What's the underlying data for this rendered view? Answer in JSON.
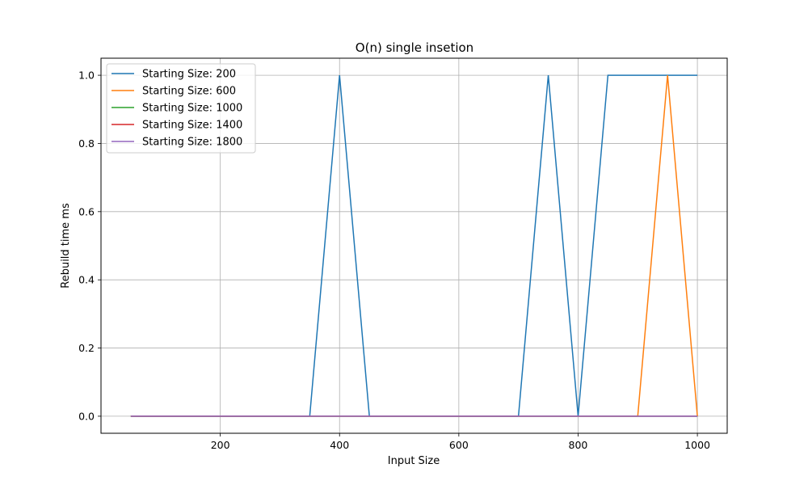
{
  "chart_data": {
    "type": "line",
    "title": "O(n) single insetion",
    "xlabel": "Input Size",
    "ylabel": "Rebuild time ms",
    "xlim": [
      0,
      1050
    ],
    "ylim": [
      -0.05,
      1.05
    ],
    "xticks": [
      200,
      400,
      600,
      800,
      1000
    ],
    "yticks": [
      0.0,
      0.2,
      0.4,
      0.6,
      0.8,
      1.0
    ],
    "xtick_labels": [
      "200",
      "400",
      "600",
      "800",
      "1000"
    ],
    "ytick_labels": [
      "0.0",
      "0.2",
      "0.4",
      "0.6",
      "0.8",
      "1.0"
    ],
    "grid": true,
    "legend_position": "top-left",
    "x": [
      50,
      100,
      150,
      200,
      250,
      300,
      350,
      400,
      450,
      500,
      550,
      600,
      650,
      700,
      750,
      800,
      850,
      900,
      950,
      1000
    ],
    "series": [
      {
        "name": "Starting Size: 200",
        "color": "#1f77b4",
        "values": [
          0,
          0,
          0,
          0,
          0,
          0,
          0,
          1,
          0,
          0,
          0,
          0,
          0,
          0,
          1,
          0,
          1,
          1,
          1,
          1
        ]
      },
      {
        "name": "Starting Size: 600",
        "color": "#ff7f0e",
        "values": [
          0,
          0,
          0,
          0,
          0,
          0,
          0,
          0,
          0,
          0,
          0,
          0,
          0,
          0,
          0,
          0,
          0,
          0,
          1,
          0
        ]
      },
      {
        "name": "Starting Size: 1000",
        "color": "#2ca02c",
        "values": [
          0,
          0,
          0,
          0,
          0,
          0,
          0,
          0,
          0,
          0,
          0,
          0,
          0,
          0,
          0,
          0,
          0,
          0,
          0,
          0
        ]
      },
      {
        "name": "Starting Size: 1400",
        "color": "#d62728",
        "values": [
          0,
          0,
          0,
          0,
          0,
          0,
          0,
          0,
          0,
          0,
          0,
          0,
          0,
          0,
          0,
          0,
          0,
          0,
          0,
          0
        ]
      },
      {
        "name": "Starting Size: 1800",
        "color": "#9467bd",
        "values": [
          0,
          0,
          0,
          0,
          0,
          0,
          0,
          0,
          0,
          0,
          0,
          0,
          0,
          0,
          0,
          0,
          0,
          0,
          0,
          0
        ]
      }
    ]
  }
}
